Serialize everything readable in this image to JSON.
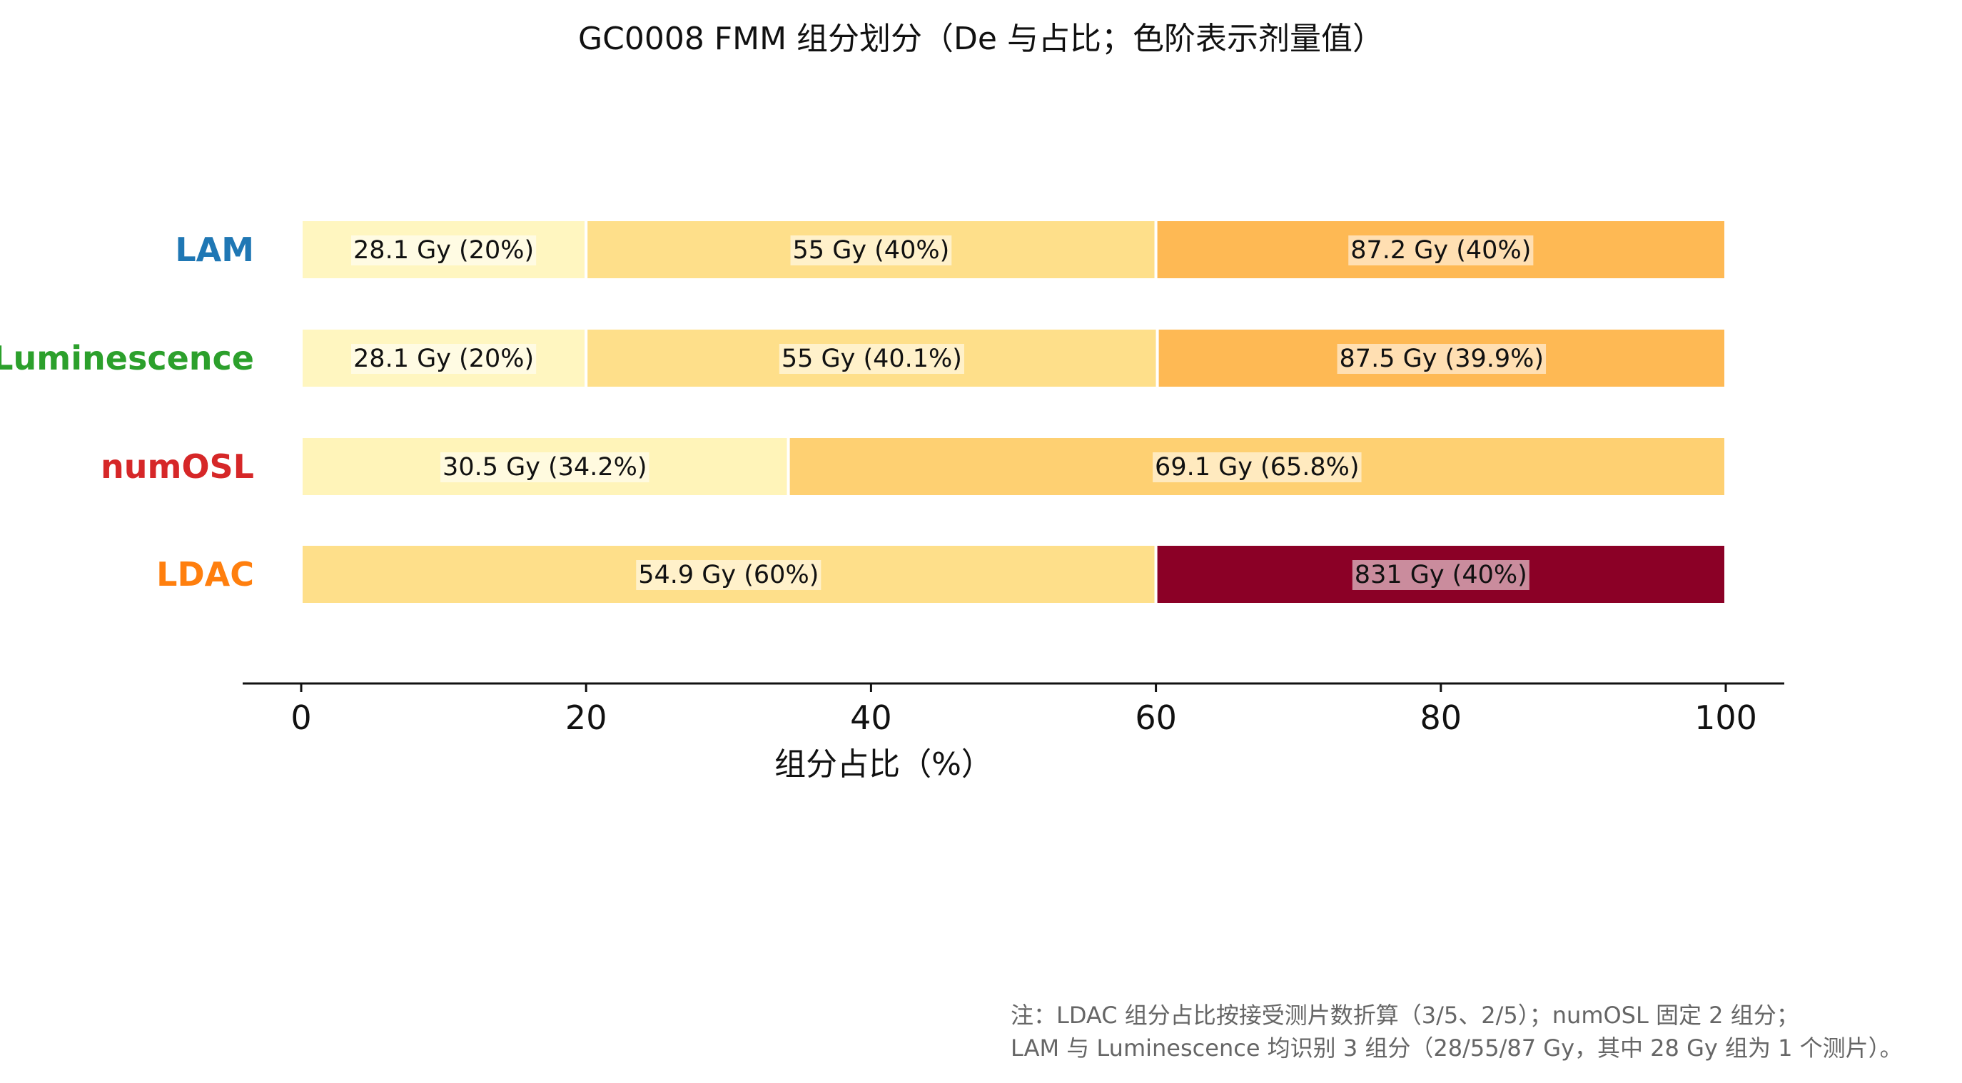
{
  "chart_data": {
    "type": "bar",
    "orientation": "horizontal-stacked",
    "title": "GC0008 FMM 组分划分（De 与占比；色阶表示剂量值）",
    "xlabel": "组分占比（%）",
    "ylabel": "",
    "xlim": [
      0,
      100
    ],
    "x_ticks": [
      "0",
      "20",
      "40",
      "60",
      "80",
      "100"
    ],
    "grid": false,
    "categories": [
      "LAM",
      "Luminescence",
      "numOSL",
      "LDAC"
    ],
    "category_colors": [
      "#1f77b4",
      "#2ca02c",
      "#d62728",
      "#ff7f0e"
    ],
    "rows": [
      {
        "name": "LAM",
        "segments": [
          {
            "percent": 20.0,
            "label": "28.1 Gy (20%)",
            "color": "#fff6c0"
          },
          {
            "percent": 40.0,
            "label": "55 Gy (40%)",
            "color": "#fedf8a"
          },
          {
            "percent": 40.0,
            "label": "87.2 Gy (40%)",
            "color": "#feb954"
          }
        ]
      },
      {
        "name": "Luminescence",
        "segments": [
          {
            "percent": 20.0,
            "label": "28.1 Gy (20%)",
            "color": "#fff6c0"
          },
          {
            "percent": 40.1,
            "label": "55 Gy (40.1%)",
            "color": "#fedf8a"
          },
          {
            "percent": 39.9,
            "label": "87.5 Gy (39.9%)",
            "color": "#feb954"
          }
        ]
      },
      {
        "name": "numOSL",
        "segments": [
          {
            "percent": 34.2,
            "label": "30.5 Gy (34.2%)",
            "color": "#fff4b9"
          },
          {
            "percent": 65.8,
            "label": "69.1 Gy (65.8%)",
            "color": "#fed072"
          }
        ]
      },
      {
        "name": "LDAC",
        "segments": [
          {
            "percent": 60.0,
            "label": "54.9 Gy (60%)",
            "color": "#fedf8a"
          },
          {
            "percent": 40.0,
            "label": "831 Gy (40%)",
            "color": "#8b0026"
          }
        ]
      }
    ]
  },
  "note": {
    "line1": "注：LDAC 组分占比按接受测片数折算（3/5、2/5）；numOSL 固定 2 组分；",
    "line2": "LAM 与 Luminescence 均识别 3 组分（28/55/87 Gy，其中 28 Gy 组为 1 个测片）。"
  }
}
